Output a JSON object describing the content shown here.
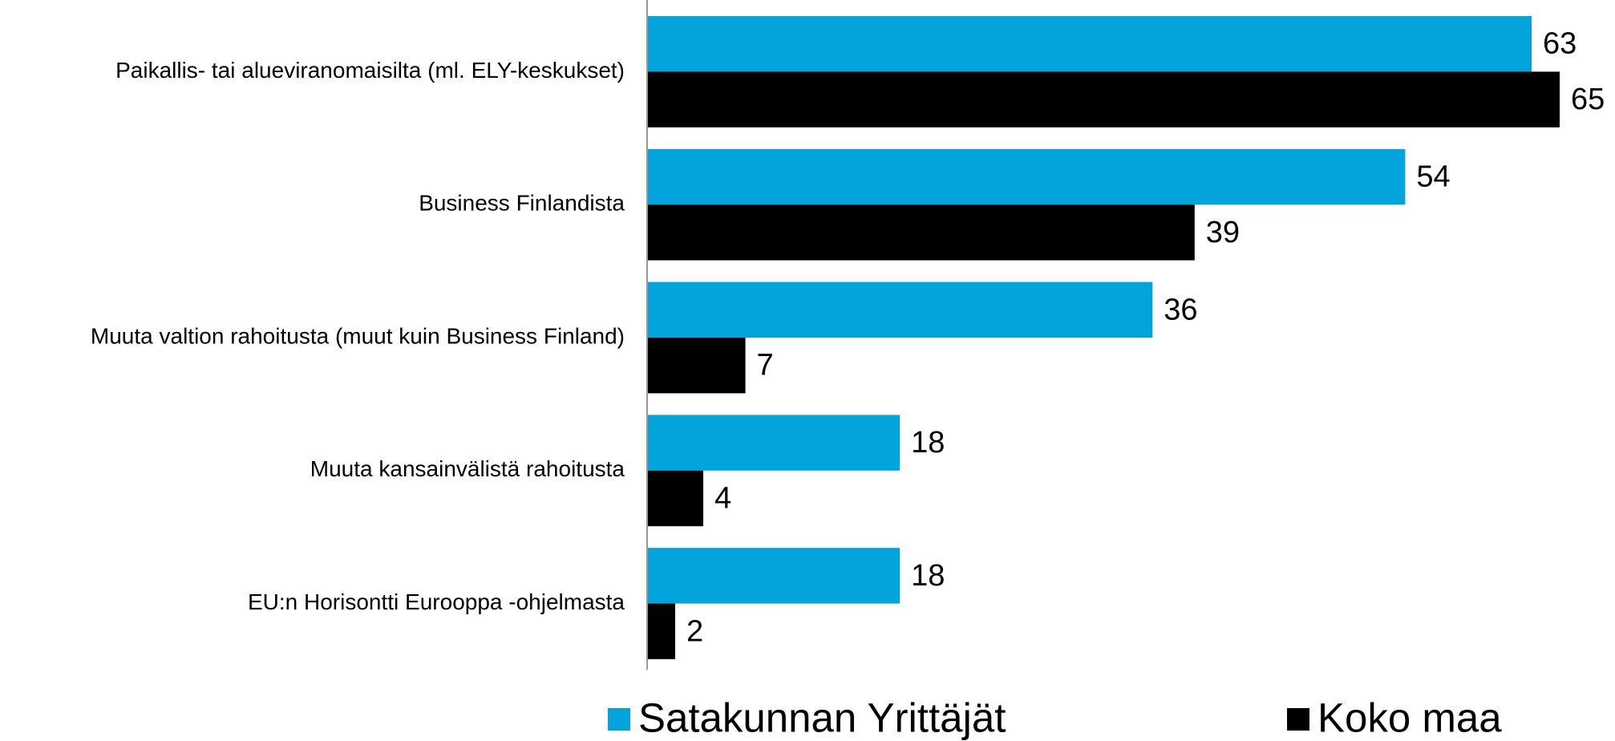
{
  "chart_data": {
    "type": "barh",
    "categories": [
      "Paikallis- tai alueviranomaisilta (ml. ELY-keskukset)",
      "Business Finlandista",
      "Muuta valtion rahoitusta (muut kuin Business Finland)",
      "Muuta kansainvälistä rahoitusta",
      "EU:n Horisontti Eurooppa -ohjelmasta"
    ],
    "series": [
      {
        "name": "Satakunnan Yrittäjät",
        "color": "#03a4dc",
        "values": [
          63,
          54,
          36,
          18,
          18
        ]
      },
      {
        "name": "Koko maa",
        "color": "#000000",
        "values": [
          65,
          39,
          7,
          4,
          2
        ]
      }
    ],
    "xlim": [
      0,
      65
    ],
    "legend": "bottom"
  }
}
